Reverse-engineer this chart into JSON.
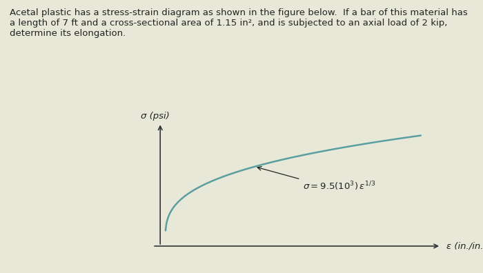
{
  "title_text": "Acetal plastic has a stress-strain diagram as shown in the figure below.  If a bar of this material has\na length of 7 ft and a cross-sectional area of 1.15 in², and is subjected to an axial load of 2 kip,\ndetermine its elongation.",
  "xlabel": "ε (in./in.)",
  "ylabel": "σ (psi)",
  "equation_label": "σ = 9.5(10³) ε",
  "equation_exponent": "1/3",
  "curve_color": "#5a9ea0",
  "axis_color": "#333333",
  "background_color": "#e8e8d8",
  "epsilon_max": 1.0,
  "k": 9500,
  "text_color": "#222222",
  "fig_width": 7.0,
  "fig_height": 3.96,
  "dpi": 100
}
